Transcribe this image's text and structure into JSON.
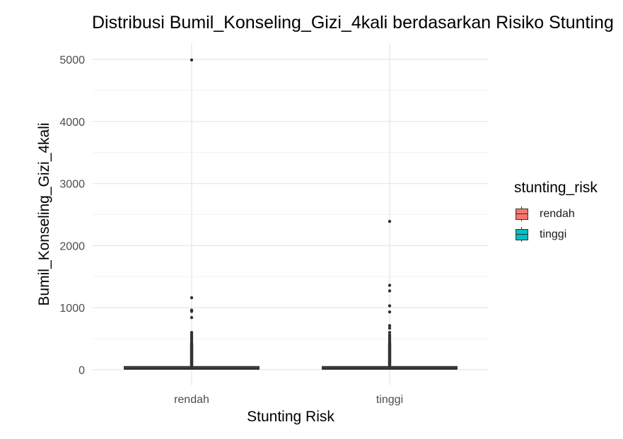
{
  "chart_data": {
    "type": "box",
    "title": "Distribusi Bumil_Konseling_Gizi_4kali berdasarkan Risiko Stunting",
    "xlabel": "Stunting Risk",
    "ylabel": "Bumil_Konseling_Gizi_4kali",
    "categories": [
      "rendah",
      "tinggi"
    ],
    "ylim": [
      0,
      5000
    ],
    "yticks": [
      0,
      1000,
      2000,
      3000,
      4000,
      5000
    ],
    "grid": true,
    "legend": {
      "title": "stunting_risk",
      "placement": "right",
      "entries": [
        {
          "label": "rendah",
          "color": "#F8766D"
        },
        {
          "label": "tinggi",
          "color": "#00BFC4"
        }
      ]
    },
    "series": [
      {
        "category": "rendah",
        "q1": 5,
        "median": 20,
        "q3": 45,
        "outliers": [
          4990,
          1160,
          960,
          940,
          840,
          600,
          570,
          540,
          510,
          480,
          450,
          420,
          390,
          360,
          330,
          300,
          270,
          240,
          210,
          180,
          160,
          140,
          120,
          100
        ]
      },
      {
        "category": "tinggi",
        "q1": 5,
        "median": 20,
        "q3": 45,
        "outliers": [
          2390,
          1360,
          1270,
          1030,
          930,
          710,
          670,
          600,
          560,
          530,
          500,
          470,
          440,
          410,
          380,
          350,
          320,
          290,
          260,
          230,
          200,
          170,
          150,
          130,
          110
        ]
      }
    ]
  }
}
